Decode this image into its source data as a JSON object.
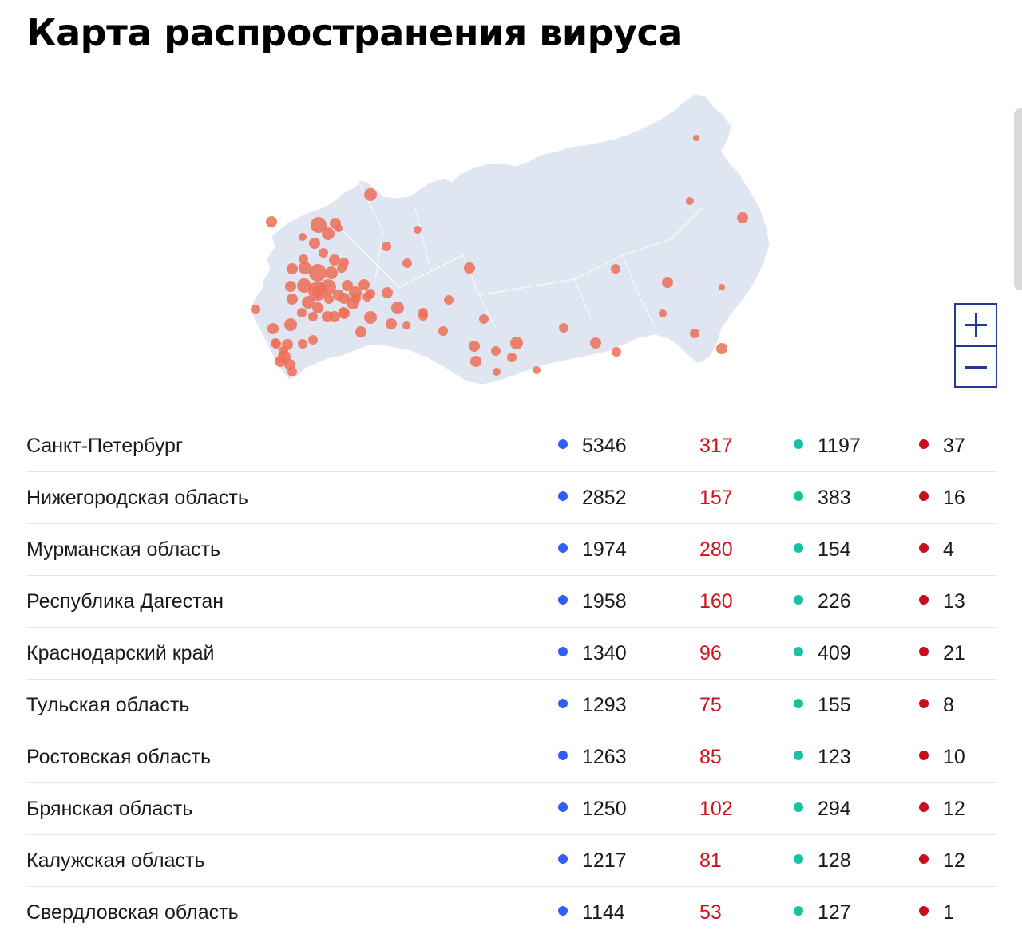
{
  "title": "Карта распространения вируса",
  "colors": {
    "map_land": "#dfe5f1",
    "map_border": "#ffffff",
    "marker": "#ef6f57",
    "cases_dot": "#2f5ff5",
    "new_cases_text": "#d0121b",
    "recovered_dot": "#18c2a1",
    "deaths_dot": "#c8101a",
    "zoom_border": "#1f3a93"
  },
  "map": {
    "country": "Россия",
    "marker_type": "circle",
    "icon": "russia-map"
  },
  "zoom": {
    "in_icon": "plus-icon",
    "out_icon": "minus-icon"
  },
  "regions": [
    {
      "name": "Санкт-Петербург",
      "cases": "5346",
      "new": "317",
      "recovered": "1197",
      "deaths": "37"
    },
    {
      "name": "Нижегородская область",
      "cases": "2852",
      "new": "157",
      "recovered": "383",
      "deaths": "16"
    },
    {
      "name": "Мурманская область",
      "cases": "1974",
      "new": "280",
      "recovered": "154",
      "deaths": "4"
    },
    {
      "name": "Республика Дагестан",
      "cases": "1958",
      "new": "160",
      "recovered": "226",
      "deaths": "13"
    },
    {
      "name": "Краснодарский край",
      "cases": "1340",
      "new": "96",
      "recovered": "409",
      "deaths": "21"
    },
    {
      "name": "Тульская область",
      "cases": "1293",
      "new": "75",
      "recovered": "155",
      "deaths": "8"
    },
    {
      "name": "Ростовская область",
      "cases": "1263",
      "new": "85",
      "recovered": "123",
      "deaths": "10"
    },
    {
      "name": "Брянская область",
      "cases": "1250",
      "new": "102",
      "recovered": "294",
      "deaths": "12"
    },
    {
      "name": "Калужская область",
      "cases": "1217",
      "new": "81",
      "recovered": "128",
      "deaths": "12"
    },
    {
      "name": "Свердловская область",
      "cases": "1144",
      "new": "53",
      "recovered": "127",
      "deaths": "1"
    }
  ]
}
